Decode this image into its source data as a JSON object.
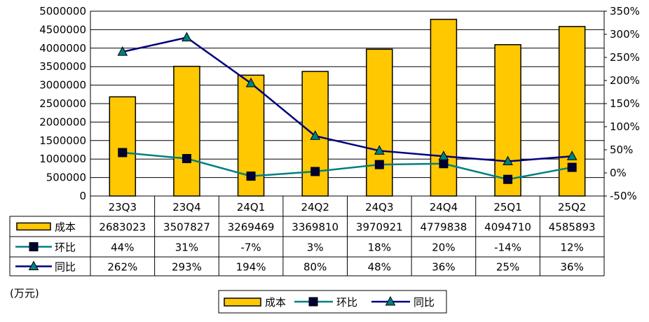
{
  "chart_data": {
    "type": "bar",
    "categories": [
      "23Q3",
      "23Q4",
      "24Q1",
      "24Q2",
      "24Q3",
      "24Q4",
      "25Q1",
      "25Q2"
    ],
    "unit": "(万元)",
    "y_left": {
      "min": 0,
      "max": 5000000,
      "step": 500000,
      "ticks": [
        "0",
        "500000",
        "1000000",
        "1500000",
        "2000000",
        "2500000",
        "3000000",
        "3500000",
        "4000000",
        "4500000",
        "5000000"
      ]
    },
    "y_right": {
      "min": -50,
      "max": 350,
      "step": 50,
      "ticks": [
        "-50%",
        "0%",
        "50%",
        "100%",
        "150%",
        "200%",
        "250%",
        "300%",
        "350%"
      ]
    },
    "grid": true,
    "legend_position": "bottom-right",
    "series": [
      {
        "name": "成本",
        "kind": "bar",
        "axis": "left",
        "color": "#FFC800",
        "edge": "#000000",
        "values": [
          2683023,
          3507827,
          3269469,
          3369810,
          3970921,
          4779838,
          4094710,
          4585893
        ],
        "labels": [
          "2683023",
          "3507827",
          "3269469",
          "3369810",
          "3970921",
          "4779838",
          "4094710",
          "4585893"
        ]
      },
      {
        "name": "环比",
        "kind": "line",
        "axis": "right",
        "color": "#008080",
        "marker": "square",
        "marker_color": "#000033",
        "values": [
          44,
          31,
          -7,
          3,
          18,
          20,
          -14,
          12
        ],
        "labels": [
          "44%",
          "31%",
          "-7%",
          "3%",
          "18%",
          "20%",
          "-14%",
          "12%"
        ]
      },
      {
        "name": "同比",
        "kind": "line",
        "axis": "right",
        "color": "#000080",
        "marker": "triangle",
        "marker_color": "#008080",
        "values": [
          262,
          293,
          194,
          80,
          48,
          36,
          25,
          36
        ],
        "labels": [
          "262%",
          "293%",
          "194%",
          "80%",
          "48%",
          "36%",
          "25%",
          "36%"
        ]
      }
    ]
  }
}
